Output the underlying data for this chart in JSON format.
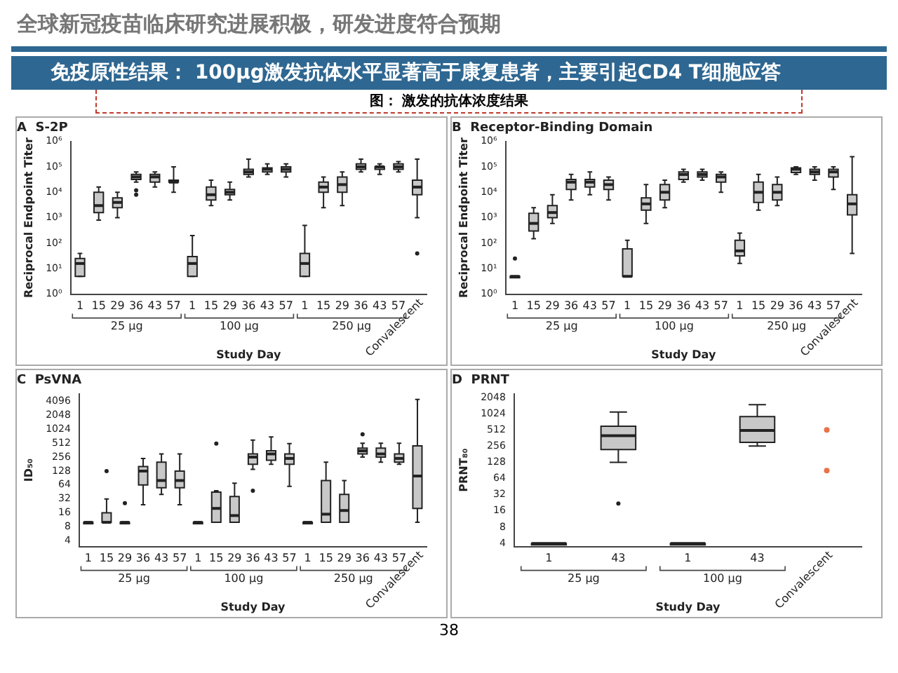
{
  "chart_data": [
    {
      "type": "other",
      "title": "全球新冠疫苗临床研究进展积极，研发进度符合预期",
      "subtitle": "免疫原性结果： 100μg激发抗体水平显著高于康复患者，主要引起CD4 T细胞应答",
      "annotations": [
        "图： 激发的抗体浓度结果",
        "38"
      ]
    },
    {
      "type": "box",
      "title": "A  S-2P",
      "xlabel": "Study Day",
      "ylabel": "Reciprocal Endpoint Titer",
      "color": "#c8c8c8",
      "log": true,
      "grid": false,
      "legend": false,
      "categories": [
        "1",
        "15",
        "29",
        "36",
        "43",
        "57",
        "1",
        "15",
        "29",
        "36",
        "43",
        "57",
        "1",
        "15",
        "29",
        "36",
        "43",
        "57",
        "Convalescent"
      ],
      "annotations": [
        "25 μg",
        "100 μg",
        "250 μg"
      ],
      "ylim": [
        1,
        1000000
      ],
      "yticks": [
        {
          "value": 1,
          "label": "10⁰"
        },
        {
          "value": 10,
          "label": "10¹"
        },
        {
          "value": 100,
          "label": "10²"
        },
        {
          "value": 1000,
          "label": "10³"
        },
        {
          "value": 10000,
          "label": "10⁴"
        },
        {
          "value": 100000,
          "label": "10⁵"
        },
        {
          "value": 1000000,
          "label": "10⁶"
        }
      ],
      "boxes": [
        {
          "low": 5,
          "q1": 5,
          "median": 16,
          "q3": 25,
          "high": 40
        },
        {
          "low": 800,
          "q1": 1600,
          "median": 3000,
          "q3": 10000,
          "high": 16000
        },
        {
          "low": 1000,
          "q1": 2500,
          "median": 4000,
          "q3": 6000,
          "high": 10000
        },
        {
          "low": 25000,
          "q1": 32000,
          "median": 40000,
          "q3": 50000,
          "high": 63000,
          "outliers": [
            8000,
            12000
          ]
        },
        {
          "low": 16000,
          "q1": 25000,
          "median": 40000,
          "q3": 50000,
          "high": 63000
        },
        {
          "low": 10000,
          "q1": 25000,
          "median": 25000,
          "q3": 30000,
          "high": 100000
        },
        {
          "low": 5,
          "q1": 5,
          "median": 16,
          "q3": 30,
          "high": 200
        },
        {
          "low": 3000,
          "q1": 5000,
          "median": 8000,
          "q3": 16000,
          "high": 30000
        },
        {
          "low": 5000,
          "q1": 8000,
          "median": 10000,
          "q3": 13000,
          "high": 25000
        },
        {
          "low": 40000,
          "q1": 50000,
          "median": 63000,
          "q3": 80000,
          "high": 200000
        },
        {
          "low": 50000,
          "q1": 63000,
          "median": 80000,
          "q3": 90000,
          "high": 130000
        },
        {
          "low": 40000,
          "q1": 63000,
          "median": 80000,
          "q3": 100000,
          "high": 130000
        },
        {
          "low": 5,
          "q1": 5,
          "median": 16,
          "q3": 40,
          "high": 500
        },
        {
          "low": 2500,
          "q1": 10000,
          "median": 16000,
          "q3": 25000,
          "high": 40000
        },
        {
          "low": 3000,
          "q1": 10000,
          "median": 20000,
          "q3": 40000,
          "high": 63000
        },
        {
          "low": 63000,
          "q1": 80000,
          "median": 100000,
          "q3": 130000,
          "high": 200000
        },
        {
          "low": 50000,
          "q1": 80000,
          "median": 100000,
          "q3": 100000,
          "high": 130000
        },
        {
          "low": 63000,
          "q1": 80000,
          "median": 100000,
          "q3": 130000,
          "high": 160000
        },
        {
          "low": 1000,
          "q1": 8000,
          "median": 16000,
          "q3": 30000,
          "high": 200000,
          "outliers": [
            40
          ]
        }
      ]
    },
    {
      "type": "box",
      "title": "B  Receptor-Binding Domain",
      "xlabel": "Study Day",
      "ylabel": "Reciprocal Endpoint Titer",
      "color": "#c8c8c8",
      "log": true,
      "grid": false,
      "legend": false,
      "categories": [
        "1",
        "15",
        "29",
        "36",
        "43",
        "57",
        "1",
        "15",
        "29",
        "36",
        "43",
        "57",
        "1",
        "15",
        "29",
        "36",
        "43",
        "57",
        "Convalescent"
      ],
      "annotations": [
        "25 μg",
        "100 μg",
        "250 μg"
      ],
      "ylim": [
        1,
        1000000
      ],
      "yticks": [
        {
          "value": 1,
          "label": "10⁰"
        },
        {
          "value": 10,
          "label": "10¹"
        },
        {
          "value": 100,
          "label": "10²"
        },
        {
          "value": 1000,
          "label": "10³"
        },
        {
          "value": 10000,
          "label": "10⁴"
        },
        {
          "value": 100000,
          "label": "10⁵"
        },
        {
          "value": 1000000,
          "label": "10⁶"
        }
      ],
      "boxes": [
        {
          "low": 5,
          "q1": 5,
          "median": 5,
          "q3": 5,
          "high": 5,
          "outliers": [
            25
          ]
        },
        {
          "low": 150,
          "q1": 300,
          "median": 600,
          "q3": 1500,
          "high": 2500
        },
        {
          "low": 600,
          "q1": 1000,
          "median": 1600,
          "q3": 3000,
          "high": 8000
        },
        {
          "low": 5000,
          "q1": 13000,
          "median": 25000,
          "q3": 32000,
          "high": 50000
        },
        {
          "low": 8000,
          "q1": 16000,
          "median": 25000,
          "q3": 32000,
          "high": 63000
        },
        {
          "low": 5000,
          "q1": 13000,
          "median": 20000,
          "q3": 30000,
          "high": 40000
        },
        {
          "low": 5,
          "q1": 5,
          "median": 5,
          "q3": 60,
          "high": 130
        },
        {
          "low": 600,
          "q1": 2000,
          "median": 3500,
          "q3": 6000,
          "high": 20000
        },
        {
          "low": 2500,
          "q1": 5000,
          "median": 10000,
          "q3": 20000,
          "high": 30000
        },
        {
          "low": 25000,
          "q1": 32000,
          "median": 50000,
          "q3": 63000,
          "high": 80000
        },
        {
          "low": 30000,
          "q1": 40000,
          "median": 50000,
          "q3": 63000,
          "high": 80000
        },
        {
          "low": 10000,
          "q1": 25000,
          "median": 40000,
          "q3": 50000,
          "high": 63000
        },
        {
          "low": 16,
          "q1": 32,
          "median": 50,
          "q3": 130,
          "high": 250
        },
        {
          "low": 2000,
          "q1": 4000,
          "median": 10000,
          "q3": 25000,
          "high": 50000
        },
        {
          "low": 3000,
          "q1": 5000,
          "median": 10000,
          "q3": 20000,
          "high": 40000
        },
        {
          "low": 50000,
          "q1": 60000,
          "median": 80000,
          "q3": 90000,
          "high": 100000
        },
        {
          "low": 30000,
          "q1": 50000,
          "median": 63000,
          "q3": 80000,
          "high": 100000
        },
        {
          "low": 13000,
          "q1": 40000,
          "median": 63000,
          "q3": 80000,
          "high": 100000
        },
        {
          "low": 40,
          "q1": 1300,
          "median": 3500,
          "q3": 8000,
          "high": 250000
        }
      ]
    },
    {
      "type": "box",
      "title": "C  PsVNA",
      "xlabel": "Study Day",
      "ylabel": "ID₅₀",
      "color": "#c8c8c8",
      "log": true,
      "grid": false,
      "legend": false,
      "categories": [
        "1",
        "15",
        "29",
        "36",
        "43",
        "57",
        "1",
        "15",
        "29",
        "36",
        "43",
        "57",
        "1",
        "15",
        "29",
        "36",
        "43",
        "57",
        "Convalescent"
      ],
      "annotations": [
        "25 μg",
        "100 μg",
        "250 μg"
      ],
      "ylim": [
        3,
        6000
      ],
      "yticks": [
        4,
        8,
        16,
        32,
        64,
        128,
        256,
        512,
        1024,
        2048,
        4096
      ],
      "boxes": [
        {
          "low": 10,
          "q1": 10,
          "median": 10,
          "q3": 10,
          "high": 10
        },
        {
          "low": 10,
          "q1": 10,
          "median": 10,
          "q3": 16,
          "high": 32,
          "outliers": [
            128
          ]
        },
        {
          "low": 10,
          "q1": 10,
          "median": 10,
          "q3": 10,
          "high": 10,
          "outliers": [
            26
          ]
        },
        {
          "low": 24,
          "q1": 64,
          "median": 128,
          "q3": 160,
          "high": 240
        },
        {
          "low": 40,
          "q1": 56,
          "median": 80,
          "q3": 200,
          "high": 300
        },
        {
          "low": 24,
          "q1": 56,
          "median": 80,
          "q3": 128,
          "high": 300
        },
        {
          "low": 10,
          "q1": 10,
          "median": 10,
          "q3": 10,
          "high": 10
        },
        {
          "low": 10,
          "q1": 10,
          "median": 20,
          "q3": 45,
          "high": 48,
          "outliers": [
            500
          ]
        },
        {
          "low": 10,
          "q1": 10,
          "median": 14,
          "q3": 36,
          "high": 70
        },
        {
          "low": 140,
          "q1": 180,
          "median": 256,
          "q3": 300,
          "high": 600,
          "outliers": [
            48
          ]
        },
        {
          "low": 180,
          "q1": 220,
          "median": 300,
          "q3": 350,
          "high": 700
        },
        {
          "low": 60,
          "q1": 180,
          "median": 240,
          "q3": 300,
          "high": 500
        },
        {
          "low": 10,
          "q1": 10,
          "median": 10,
          "q3": 10,
          "high": 10
        },
        {
          "low": 10,
          "q1": 10,
          "median": 15,
          "q3": 80,
          "high": 200
        },
        {
          "low": 10,
          "q1": 10,
          "median": 18,
          "q3": 40,
          "high": 80
        },
        {
          "low": 256,
          "q1": 300,
          "median": 350,
          "q3": 400,
          "high": 512,
          "outliers": [
            800
          ]
        },
        {
          "low": 200,
          "q1": 256,
          "median": 300,
          "q3": 400,
          "high": 512
        },
        {
          "low": 180,
          "q1": 200,
          "median": 240,
          "q3": 300,
          "high": 512
        },
        {
          "low": 10,
          "q1": 20,
          "median": 100,
          "q3": 450,
          "high": 4500
        }
      ]
    },
    {
      "type": "box",
      "title": "D  PRNT",
      "xlabel": "Study Day",
      "ylabel": "PRNT₈₀",
      "color": "#c8c8c8",
      "log": true,
      "grid": false,
      "legend": false,
      "categories": [
        "1",
        "43",
        "1",
        "43",
        "Convalescent"
      ],
      "annotations": [
        "25 μg",
        "100 μg"
      ],
      "ylim": [
        3.5,
        2400
      ],
      "yticks": [
        4,
        8,
        16,
        32,
        64,
        128,
        256,
        512,
        1024,
        2048
      ],
      "boxes": [
        {
          "low": 4,
          "q1": 4,
          "median": 4,
          "q3": 4,
          "high": 4
        },
        {
          "low": 128,
          "q1": 220,
          "median": 400,
          "q3": 600,
          "high": 1100,
          "outliers": [
            22
          ]
        },
        {
          "low": 4,
          "q1": 4,
          "median": 4,
          "q3": 4,
          "high": 4
        },
        {
          "low": 256,
          "q1": 300,
          "median": 500,
          "q3": 900,
          "high": 1500
        },
        null
      ],
      "series": [
        {
          "type": "scatter",
          "x": [
            "Convalescent",
            "Convalescent"
          ],
          "values": [
            512,
            90
          ],
          "color": "#e8734a"
        }
      ]
    }
  ]
}
